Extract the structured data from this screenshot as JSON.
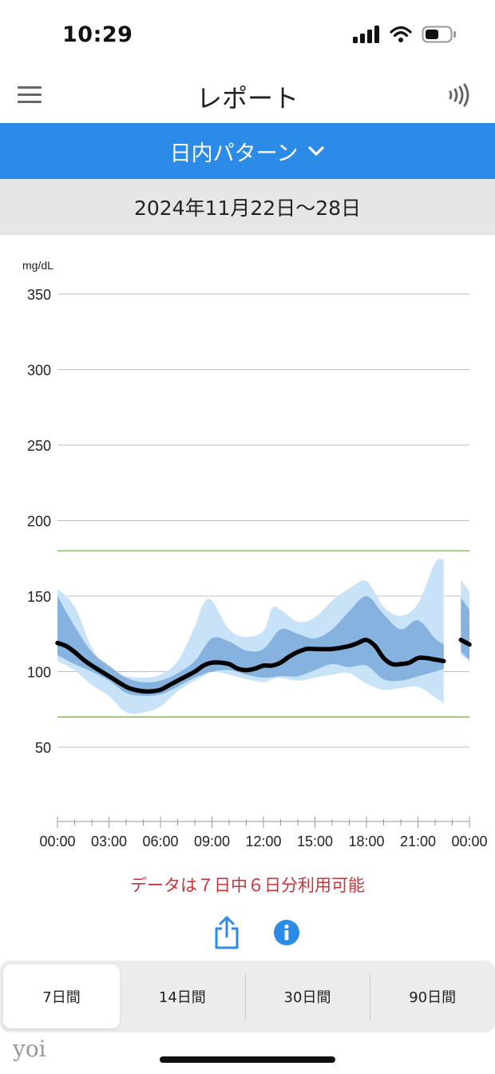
{
  "status_bar": {
    "time": "10:29"
  },
  "header": {
    "title": "レポート"
  },
  "view_selector": {
    "label": "日内パターン"
  },
  "date_range": {
    "label": "2024年11月22日〜28日"
  },
  "chart_data": {
    "type": "area",
    "title": "日内パターン",
    "ylabel": "mg/dL",
    "ylim": [
      0,
      350
    ],
    "yticks": [
      50,
      100,
      150,
      200,
      250,
      300,
      350
    ],
    "xlabels": [
      "00:00",
      "03:00",
      "06:00",
      "09:00",
      "12:00",
      "15:00",
      "18:00",
      "21:00",
      "00:00"
    ],
    "xlim": [
      0,
      24
    ],
    "target_range": {
      "low": 70,
      "high": 180,
      "color": "#8bc34a"
    },
    "colors": {
      "outer_band": "#c8e2f8",
      "inner_band": "#7aa9da",
      "median": "#000000"
    },
    "series": [
      {
        "name": "median",
        "x": [
          0.0,
          0.5,
          1.0,
          1.5,
          2.0,
          3.0,
          4.0,
          4.5,
          5.0,
          5.5,
          6.0,
          6.5,
          7.0,
          8.0,
          8.5,
          9.0,
          9.5,
          10.0,
          10.5,
          11.0,
          11.5,
          12.0,
          12.5,
          13.0,
          13.5,
          14.0,
          14.5,
          15.0,
          16.0,
          17.0,
          17.5,
          18.0,
          18.5,
          19.0,
          19.5,
          20.0,
          20.5,
          21.0,
          21.5,
          22.0,
          22.5
        ],
        "values": [
          119,
          117,
          113,
          108,
          104,
          97,
          90,
          88,
          87,
          87,
          88,
          91,
          94,
          100,
          104,
          106,
          106,
          105,
          102,
          101,
          102,
          104,
          104,
          106,
          110,
          113,
          115,
          115,
          115,
          117,
          119,
          121,
          117,
          109,
          105,
          105,
          106,
          109,
          109,
          108,
          107
        ]
      },
      {
        "name": "median_next_day",
        "x": [
          23.5,
          24.0
        ],
        "values": [
          121,
          118
        ]
      },
      {
        "name": "inner_band",
        "x": [
          0.0,
          1.0,
          2.0,
          3.0,
          4.0,
          5.0,
          6.0,
          7.0,
          8.0,
          9.0,
          10.0,
          11.0,
          12.0,
          13.0,
          14.0,
          15.0,
          16.0,
          17.0,
          18.0,
          19.0,
          20.0,
          21.0,
          22.0,
          22.5
        ],
        "upper": [
          150,
          130,
          113,
          104,
          96,
          93,
          94,
          99,
          107,
          122,
          120,
          114,
          115,
          128,
          125,
          122,
          128,
          140,
          150,
          138,
          128,
          134,
          122,
          118
        ],
        "lower": [
          111,
          105,
          100,
          94,
          86,
          84,
          85,
          90,
          96,
          100,
          101,
          98,
          96,
          97,
          97,
          101,
          105,
          103,
          104,
          95,
          94,
          97,
          100,
          102
        ]
      },
      {
        "name": "inner_band_next_day",
        "x": [
          23.5,
          24.0
        ],
        "upper": [
          149,
          141
        ],
        "lower": [
          113,
          108
        ]
      },
      {
        "name": "outer_band",
        "x": [
          0.0,
          1.0,
          2.0,
          3.0,
          4.0,
          5.0,
          6.0,
          7.0,
          8.0,
          8.5,
          9.0,
          10.0,
          11.0,
          12.0,
          12.5,
          13.0,
          14.0,
          15.0,
          16.0,
          17.0,
          18.0,
          19.0,
          20.0,
          21.0,
          22.0,
          22.5
        ],
        "upper": [
          155,
          143,
          116,
          100,
          97,
          96,
          98,
          107,
          130,
          145,
          147,
          128,
          123,
          127,
          142,
          141,
          133,
          136,
          147,
          155,
          160,
          143,
          137,
          145,
          172,
          174
        ],
        "lower": [
          107,
          101,
          91,
          84,
          73,
          73,
          77,
          87,
          94,
          97,
          100,
          98,
          95,
          93,
          95,
          96,
          94,
          96,
          98,
          99,
          92,
          88,
          89,
          90,
          83,
          79
        ]
      },
      {
        "name": "outer_band_next_day",
        "x": [
          23.5,
          24.0
        ],
        "upper": [
          161,
          153
        ],
        "lower": [
          111,
          107
        ]
      }
    ]
  },
  "data_note": "データは７日中６日分利用可能",
  "period_tabs": [
    {
      "label": "7日間",
      "active": true
    },
    {
      "label": "14日間",
      "active": false
    },
    {
      "label": "30日間",
      "active": false
    },
    {
      "label": "90日間",
      "active": false
    }
  ],
  "watermark": "yoi"
}
